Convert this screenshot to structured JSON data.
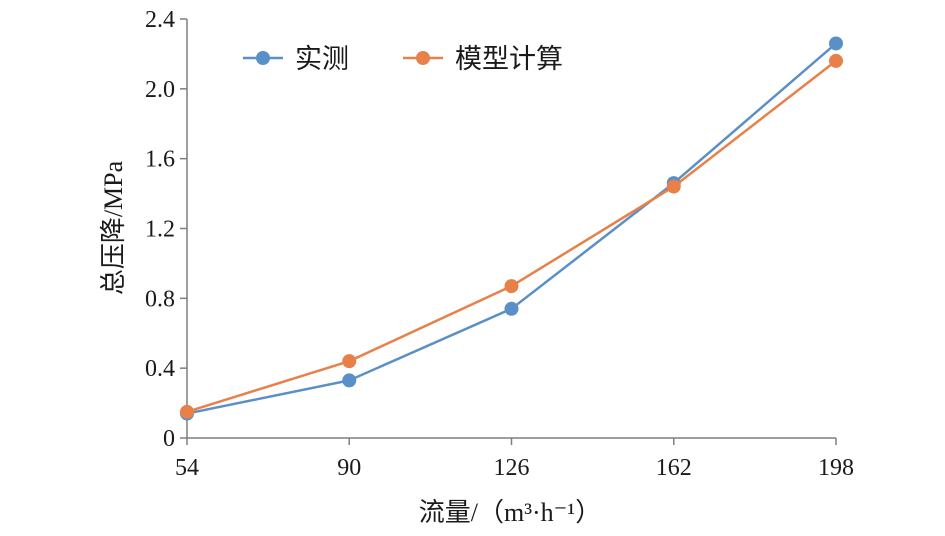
{
  "chart_data": {
    "type": "line",
    "title": "",
    "xlabel": "流量/（m³·h⁻¹）",
    "ylabel": "总压降/MPa",
    "categories": [
      "54",
      "90",
      "126",
      "162",
      "198"
    ],
    "x": [
      54,
      90,
      126,
      162,
      198
    ],
    "xlim": [
      54,
      198
    ],
    "ylim": [
      0,
      2.4
    ],
    "y_ticks": [
      "0",
      "0.4",
      "0.8",
      "1.2",
      "1.6",
      "2.0",
      "2.4"
    ],
    "y_tick_values": [
      0,
      0.4,
      0.8,
      1.2,
      1.6,
      2.0,
      2.4
    ],
    "grid": false,
    "legend_position": "top",
    "series": [
      {
        "name": "实测",
        "color": "#5b8fc7",
        "values": [
          0.14,
          0.33,
          0.74,
          1.46,
          2.26
        ]
      },
      {
        "name": "模型计算",
        "color": "#e8804a",
        "values": [
          0.15,
          0.44,
          0.87,
          1.44,
          2.16
        ]
      }
    ]
  }
}
